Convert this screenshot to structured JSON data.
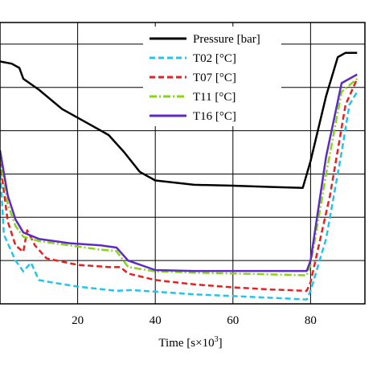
{
  "chart_data": {
    "type": "line",
    "xlabel": "Time [s×10",
    "xlabel_sup": "3",
    "xlabel_end": "]",
    "x_ticks": [
      20,
      40,
      60,
      80
    ],
    "xlim": [
      0,
      94
    ],
    "ylim": [
      0,
      6.5
    ],
    "grid": true,
    "legend_position": "top-right",
    "series": [
      {
        "name": "Pressure [bar]",
        "color": "#000000",
        "dash": "solid",
        "points": [
          [
            0,
            5.6
          ],
          [
            3,
            5.55
          ],
          [
            5,
            5.45
          ],
          [
            6,
            5.2
          ],
          [
            10,
            4.95
          ],
          [
            16,
            4.5
          ],
          [
            22,
            4.2
          ],
          [
            28,
            3.9
          ],
          [
            32,
            3.5
          ],
          [
            36,
            3.05
          ],
          [
            40,
            2.85
          ],
          [
            50,
            2.75
          ],
          [
            60,
            2.73
          ],
          [
            70,
            2.7
          ],
          [
            78,
            2.68
          ],
          [
            80,
            3.3
          ],
          [
            84,
            4.8
          ],
          [
            87,
            5.7
          ],
          [
            89,
            5.8
          ],
          [
            92,
            5.8
          ]
        ]
      },
      {
        "name": "T02 [°C]",
        "color": "#22c4ee",
        "dash": "dashed",
        "points": [
          [
            0,
            3.2
          ],
          [
            1,
            1.6
          ],
          [
            4,
            1.0
          ],
          [
            6,
            0.75
          ],
          [
            8,
            0.95
          ],
          [
            10,
            0.55
          ],
          [
            13,
            0.5
          ],
          [
            20,
            0.4
          ],
          [
            30,
            0.3
          ],
          [
            34,
            0.32
          ],
          [
            40,
            0.28
          ],
          [
            50,
            0.22
          ],
          [
            60,
            0.18
          ],
          [
            70,
            0.14
          ],
          [
            79,
            0.1
          ],
          [
            80,
            0.3
          ],
          [
            84,
            1.5
          ],
          [
            88,
            3.5
          ],
          [
            90,
            4.6
          ],
          [
            92,
            4.9
          ]
        ]
      },
      {
        "name": "T07 [°C]",
        "color": "#e82020",
        "dash": "dashed",
        "points": [
          [
            0,
            3.3
          ],
          [
            2,
            1.9
          ],
          [
            4,
            1.35
          ],
          [
            6,
            1.2
          ],
          [
            7,
            1.7
          ],
          [
            9,
            1.35
          ],
          [
            12,
            1.05
          ],
          [
            20,
            0.9
          ],
          [
            28,
            0.85
          ],
          [
            31,
            0.85
          ],
          [
            33,
            0.7
          ],
          [
            40,
            0.55
          ],
          [
            50,
            0.45
          ],
          [
            60,
            0.38
          ],
          [
            70,
            0.33
          ],
          [
            79,
            0.3
          ],
          [
            80,
            0.5
          ],
          [
            85,
            2.5
          ],
          [
            89,
            4.6
          ],
          [
            92,
            5.2
          ]
        ]
      },
      {
        "name": "T11 [°C]",
        "color": "#88d418",
        "dash": "dashdot",
        "points": [
          [
            0,
            3.4
          ],
          [
            2,
            2.3
          ],
          [
            4,
            1.8
          ],
          [
            6,
            1.55
          ],
          [
            10,
            1.45
          ],
          [
            18,
            1.35
          ],
          [
            26,
            1.25
          ],
          [
            30,
            1.22
          ],
          [
            33,
            0.85
          ],
          [
            40,
            0.75
          ],
          [
            50,
            0.72
          ],
          [
            60,
            0.7
          ],
          [
            70,
            0.68
          ],
          [
            79,
            0.66
          ],
          [
            80,
            0.9
          ],
          [
            84,
            3.0
          ],
          [
            88,
            4.9
          ],
          [
            92,
            5.2
          ]
        ]
      },
      {
        "name": "T16 [°C]",
        "color": "#5c2ac4",
        "dash": "solid",
        "points": [
          [
            0,
            3.55
          ],
          [
            2,
            2.5
          ],
          [
            4,
            1.95
          ],
          [
            6,
            1.65
          ],
          [
            10,
            1.5
          ],
          [
            18,
            1.4
          ],
          [
            26,
            1.35
          ],
          [
            30,
            1.3
          ],
          [
            33,
            1.0
          ],
          [
            40,
            0.78
          ],
          [
            50,
            0.76
          ],
          [
            60,
            0.76
          ],
          [
            70,
            0.76
          ],
          [
            79,
            0.76
          ],
          [
            80,
            1.0
          ],
          [
            84,
            3.4
          ],
          [
            88,
            5.1
          ],
          [
            92,
            5.3
          ]
        ]
      }
    ]
  }
}
